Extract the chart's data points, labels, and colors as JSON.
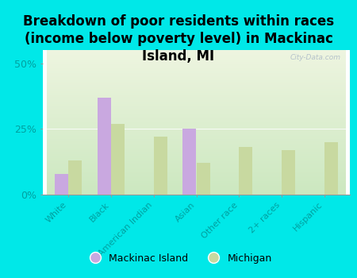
{
  "title": "Breakdown of poor residents within races\n(income below poverty level) in Mackinac\nIsland, MI",
  "categories": [
    "White",
    "Black",
    "American Indian",
    "Asian",
    "Other race",
    "2+ races",
    "Hispanic"
  ],
  "mackinac_values": [
    8,
    37,
    0,
    25,
    0,
    0,
    0
  ],
  "michigan_values": [
    13,
    27,
    22,
    12,
    18,
    17,
    20
  ],
  "mackinac_color": "#c9a8e0",
  "michigan_color": "#c8d9a0",
  "background_color": "#00e8e8",
  "plot_bg_top": "#eef5e0",
  "plot_bg_bottom": "#cce8c0",
  "yticks": [
    0,
    25,
    50
  ],
  "ylim": [
    0,
    55
  ],
  "bar_width": 0.32,
  "legend_mackinac": "Mackinac Island",
  "legend_michigan": "Michigan",
  "title_fontsize": 12,
  "tick_fontsize": 8,
  "tick_color": "#00a0a0",
  "watermark": "City-Data.com"
}
